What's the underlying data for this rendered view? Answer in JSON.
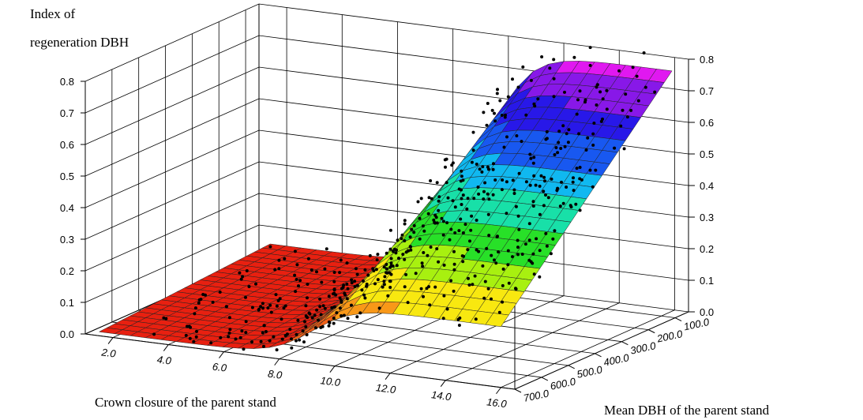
{
  "chart_data": {
    "type": "surface3d",
    "zlabel": "Index of regeneration DBH",
    "zlabel_lines": [
      "Index of",
      "regeneration DBH"
    ],
    "xlabel": "Crown closure of the parent stand",
    "ylabel": "Mean DBH of the parent stand",
    "x_ticks": [
      "2.0",
      "4.0",
      "6.0",
      "8.0",
      "10.0",
      "12.0",
      "14.0",
      "16.0"
    ],
    "y_ticks": [
      "100.0",
      "200.0",
      "300.0",
      "400.0",
      "500.0",
      "600.0",
      "700.0"
    ],
    "z_ticks": [
      "0.0",
      "0.1",
      "0.2",
      "0.3",
      "0.4",
      "0.5",
      "0.6",
      "0.7",
      "0.8"
    ],
    "xlim": [
      1,
      16.5
    ],
    "ylim": [
      700,
      50
    ],
    "zlim": [
      0,
      0.8
    ],
    "grid": true,
    "surface_color_bands": [
      "#e82010",
      "#f06018",
      "#f89818",
      "#f8e810",
      "#a8f010",
      "#28e028",
      "#18e0a8",
      "#10b8f0",
      "#1858f0",
      "#2818e8",
      "#8818e8",
      "#e018f0"
    ],
    "scatter_note": "observations plotted as black points around the fitted surface"
  }
}
